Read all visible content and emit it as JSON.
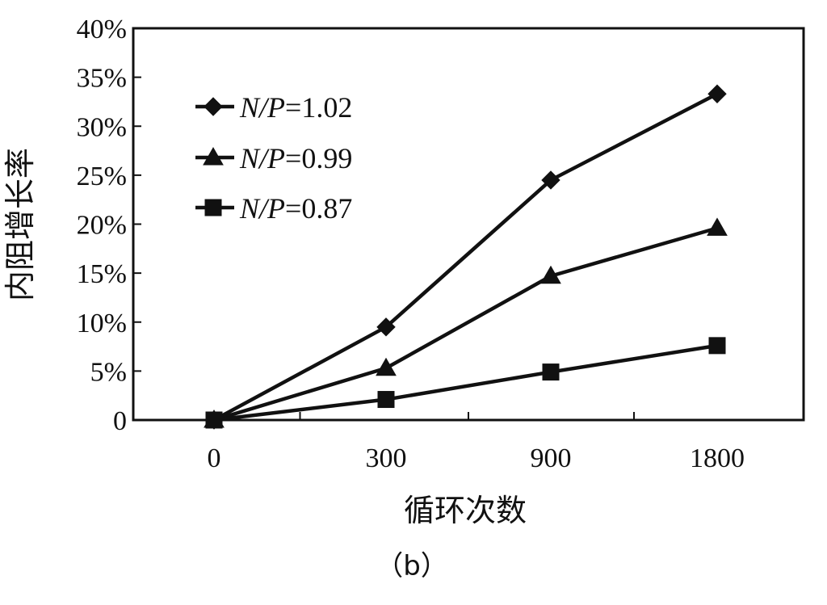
{
  "chart_data": {
    "type": "line",
    "categories": [
      "0",
      "300",
      "900",
      "1800"
    ],
    "ylim": [
      0,
      40
    ],
    "yticks": [
      0,
      5,
      10,
      15,
      20,
      25,
      30,
      35,
      40
    ],
    "ytick_labels": [
      "0",
      "5%",
      "10%",
      "15%",
      "20%",
      "25%",
      "30%",
      "35%",
      "40%"
    ],
    "xlabel": "循环次数",
    "ylabel": "内阻增长率",
    "caption": "（b）",
    "grid": false,
    "legend_position": "top-left",
    "series": [
      {
        "name": "N/P=1.02",
        "name_italic": "N/P",
        "name_value": "=1.02",
        "marker": "diamond",
        "color": "#111111",
        "values": [
          0,
          9.5,
          24.5,
          33.3
        ]
      },
      {
        "name": "N/P=0.99",
        "name_italic": "N/P",
        "name_value": "=0.99",
        "marker": "triangle",
        "color": "#111111",
        "values": [
          0,
          5.3,
          14.7,
          19.6
        ]
      },
      {
        "name": "N/P=0.87",
        "name_italic": "N/P",
        "name_value": "=0.87",
        "marker": "square",
        "color": "#111111",
        "values": [
          0,
          2.1,
          4.9,
          7.6
        ]
      }
    ]
  }
}
